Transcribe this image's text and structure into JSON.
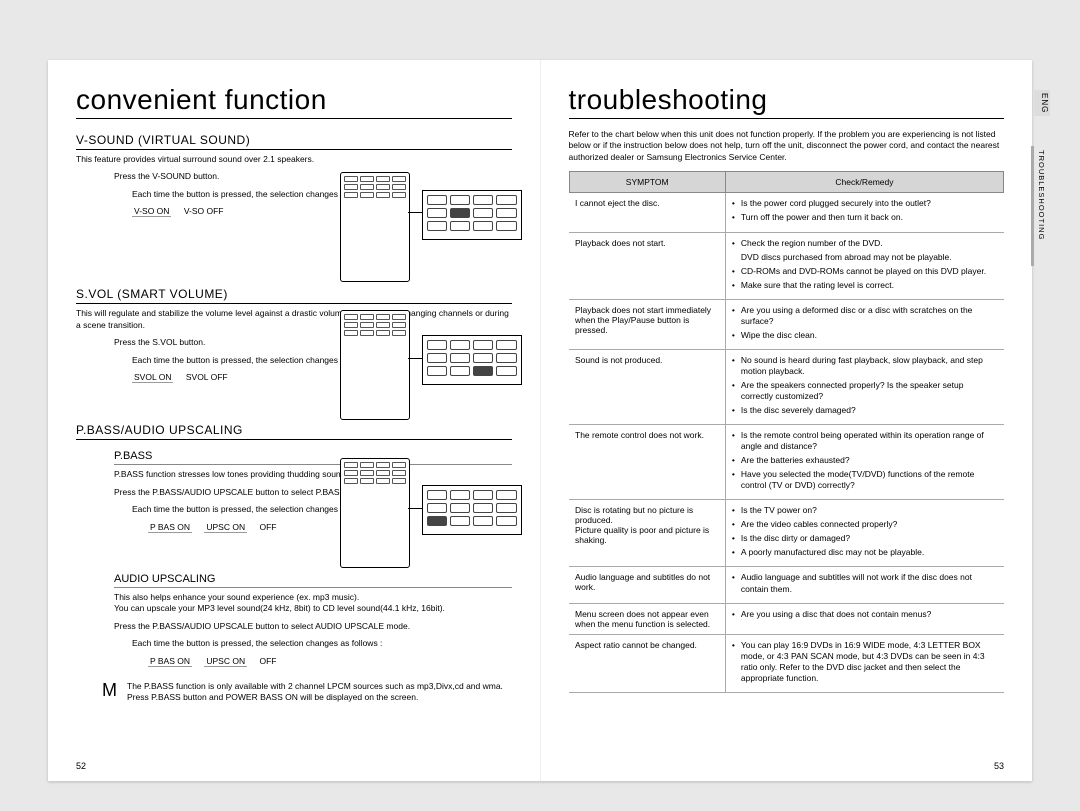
{
  "left": {
    "page_number": "52",
    "title": "convenient function",
    "sections": [
      {
        "heading": "V-SOUND (VIRTUAL SOUND)",
        "intro": "This feature provides virtual surround sound over 2.1 speakers.",
        "press": "Press the V-SOUND button.",
        "eachtime": "Each time the button is pressed, the selection changes as follows :",
        "options": [
          "V-SO ON",
          "V-SO OFF"
        ]
      },
      {
        "heading": "S.VOL (SMART VOLUME)",
        "intro": "This will regulate and stabilize the volume level against a drastic volume change when changing channels or during a scene transition.",
        "press": "Press the S.VOL button.",
        "eachtime": "Each time the button is pressed, the selection changes as follows :",
        "options": [
          "SVOL ON",
          "SVOL OFF"
        ]
      }
    ],
    "pbass_section": {
      "heading": "P.BASS/AUDIO UPSCALING",
      "pbass": {
        "subheading": "P.BASS",
        "intro": "P.BASS function stresses low tones providing thudding sound effects.",
        "press": "Press the P.BASS/AUDIO UPSCALE button to select P.BASS mode.",
        "eachtime": "Each time the button is pressed, the selection changes as follows :",
        "options": [
          "P BAS ON",
          "UPSC ON",
          "OFF"
        ]
      },
      "upscaling": {
        "subheading": "AUDIO UPSCALING",
        "intro": "This also helps enhance your sound experience (ex. mp3 music).\nYou can upscale your MP3 level sound(24 kHz, 8bit) to CD level sound(44.1 kHz, 16bit).",
        "press": "Press the P.BASS/AUDIO UPSCALE button to select AUDIO UPSCALE mode.",
        "eachtime": "Each time the button is pressed, the selection changes as follows :",
        "options": [
          "P BAS ON",
          "UPSC ON",
          "OFF"
        ]
      }
    },
    "note": {
      "badge": "M",
      "lines": [
        "The P.BASS function is only available with 2 channel LPCM sources such as mp3,Divx,cd and wma.",
        "Press P.BASS button and POWER BASS ON will be displayed on the screen."
      ]
    }
  },
  "right": {
    "page_number": "53",
    "title": "troubleshooting",
    "eng_tab": "ENG",
    "section_tab": "TROUBLESHOOTING",
    "intro": "Refer to the chart below when this unit does not function properly. If the problem you are experiencing is not listed below or if the instruction below does not help, turn off the unit, disconnect the power cord, and contact the nearest authorized dealer or Samsung Electronics Service Center.",
    "table": {
      "headers": [
        "SYMPTOM",
        "Check/Remedy"
      ],
      "rows": [
        {
          "symptom": "I cannot eject the disc.",
          "checks": [
            "Is the power cord plugged securely into the outlet?",
            "Turn off the power and then turn it back on."
          ]
        },
        {
          "symptom": "Playback does not start.",
          "checks": [
            "Check the region number of the DVD.\nDVD discs purchased from abroad may not be playable.",
            "CD-ROMs and DVD-ROMs cannot be played on this DVD player.",
            "Make sure that the rating level is correct."
          ]
        },
        {
          "symptom": "Playback does not start immediately when the Play/Pause button is pressed.",
          "checks": [
            "Are you using a deformed disc or a disc with scratches on the surface?",
            "Wipe the disc clean."
          ]
        },
        {
          "symptom": "Sound is not produced.",
          "checks": [
            "No sound is heard during fast playback, slow playback, and step motion playback.",
            "Are the speakers connected properly? Is the speaker setup correctly customized?",
            "Is the disc severely damaged?"
          ]
        },
        {
          "symptom": "The remote control does not work.",
          "checks": [
            "Is the remote control being operated within its operation range of angle and distance?",
            "Are the batteries exhausted?",
            "Have you selected the mode(TV/DVD) functions of the remote control (TV or DVD) correctly?"
          ]
        },
        {
          "symptom": "Disc is rotating but no picture is produced.\nPicture quality is poor and picture is shaking.",
          "checks": [
            "Is the TV power on?",
            "Are the video cables connected properly?",
            "Is the disc dirty or damaged?",
            "A poorly manufactured disc may not be playable."
          ]
        },
        {
          "symptom": "Audio language and subtitles do not work.",
          "checks": [
            "Audio language and subtitles will not work if the disc does not contain them."
          ]
        },
        {
          "symptom": "Menu screen does not appear even when the menu function is selected.",
          "checks": [
            "Are you using a disc that does not contain menus?"
          ]
        },
        {
          "symptom": "Aspect ratio cannot be changed.",
          "checks": [
            "You can play 16:9 DVDs in 16:9 WIDE mode, 4:3 LETTER BOX mode, or 4:3 PAN SCAN mode, but 4:3 DVDs can be seen in 4:3 ratio only. Refer to the DVD disc jacket and then select the appropriate function."
          ]
        }
      ]
    }
  }
}
